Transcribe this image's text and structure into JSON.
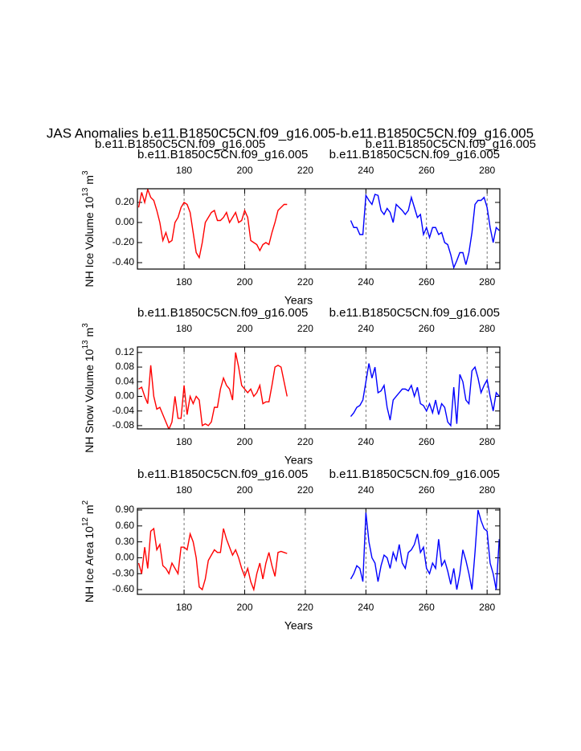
{
  "header": {
    "title": "JAS Anomalies b.e11.B1850C5CN.f09_g16.005-b.e11.B1850C5CN.f09_g16.005",
    "left": "b.e11.B1850C5CN.f09_g16.005",
    "left_color": "#0000ff",
    "right": "b.e11.B1850C5CN.f09_g16.005",
    "right_color": "#ff0000"
  },
  "chart_data": [
    {
      "type": "line",
      "x_label": "Years",
      "y_label": {
        "text": "NH Ice Volume 10",
        "exp": "13",
        "unit": " m",
        "unit_exp": "3"
      },
      "xlim": [
        164.6,
        284.2
      ],
      "xticks": [
        180,
        200,
        220,
        240,
        260,
        280
      ],
      "x_grid": true,
      "ylim": [
        -0.464,
        0.336
      ],
      "yticks": [
        {
          "value": 0.2,
          "label": "0.20"
        },
        {
          "value": 0,
          "label": "0.00"
        },
        {
          "value": -0.2,
          "label": "-0.20"
        },
        {
          "value": -0.4,
          "label": "-0.40"
        }
      ],
      "series": [
        {
          "name": "b.e11.B1850C5CN.f09_g16.005",
          "color": "#ff0000",
          "x": [
            165,
            166,
            167,
            168,
            169,
            170,
            171,
            172,
            173,
            174,
            175,
            176,
            177,
            178,
            179,
            180,
            181,
            182,
            183,
            184,
            185,
            186,
            187,
            188,
            189,
            190,
            191,
            192,
            193,
            194,
            195,
            196,
            197,
            198,
            199,
            200,
            201,
            202,
            203,
            204,
            205,
            206,
            207,
            208,
            209,
            210,
            211,
            212,
            213,
            214
          ],
          "values": [
            0.15,
            0.3,
            0.2,
            0.33,
            0.25,
            0.22,
            0.12,
            0.0,
            -0.18,
            -0.1,
            -0.2,
            -0.18,
            0.0,
            0.05,
            0.15,
            0.2,
            0.18,
            0.1,
            -0.1,
            -0.3,
            -0.35,
            -0.2,
            0.0,
            0.05,
            0.1,
            0.12,
            0.02,
            0.02,
            0.05,
            0.1,
            0.0,
            0.05,
            0.1,
            0.0,
            0.02,
            0.12,
            0.05,
            -0.18,
            -0.2,
            -0.22,
            -0.28,
            -0.22,
            -0.2,
            -0.22,
            -0.1,
            0.0,
            0.12,
            0.15,
            0.18,
            0.18
          ]
        },
        {
          "name": "b.e11.B1850C5CN.f09_g16.005",
          "color": "#0000ff",
          "x": [
            235,
            236,
            237,
            238,
            239,
            240,
            241,
            242,
            243,
            244,
            245,
            246,
            247,
            248,
            249,
            250,
            251,
            252,
            253,
            254,
            255,
            256,
            257,
            258,
            259,
            260,
            261,
            262,
            263,
            264,
            265,
            266,
            267,
            268,
            269,
            270,
            271,
            272,
            273,
            274,
            275,
            276,
            277,
            278,
            279,
            280,
            281,
            282,
            283,
            284
          ],
          "values": [
            0.02,
            -0.05,
            -0.05,
            -0.12,
            -0.12,
            0.27,
            0.22,
            0.18,
            0.28,
            0.27,
            0.12,
            0.08,
            0.14,
            0.1,
            0.0,
            0.18,
            0.15,
            0.12,
            0.08,
            0.12,
            0.25,
            0.15,
            0.05,
            0.08,
            -0.12,
            -0.05,
            -0.15,
            -0.05,
            -0.05,
            -0.12,
            -0.1,
            -0.2,
            -0.22,
            -0.32,
            -0.45,
            -0.38,
            -0.3,
            -0.3,
            -0.42,
            -0.3,
            -0.1,
            0.18,
            0.22,
            0.22,
            0.25,
            0.15,
            -0.05,
            -0.2,
            -0.05,
            -0.08
          ]
        }
      ]
    },
    {
      "type": "line",
      "x_label": "Years",
      "y_label": {
        "text": "NH Snow Volume 10",
        "exp": "13",
        "unit": " m",
        "unit_exp": "3"
      },
      "xlim": [
        164.6,
        284.2
      ],
      "xticks": [
        180,
        200,
        220,
        240,
        260,
        280
      ],
      "x_grid": true,
      "ylim": [
        -0.089,
        0.135
      ],
      "yticks": [
        0.12,
        0.08,
        0.04,
        {
          "value": 0,
          "label": "0.00"
        },
        -0.04,
        -0.08
      ],
      "series": [
        {
          "name": "b.e11.B1850C5CN.f09_g16.005",
          "color": "#ff0000",
          "x": [
            165,
            166,
            167,
            168,
            169,
            170,
            171,
            172,
            173,
            174,
            175,
            176,
            177,
            178,
            179,
            180,
            181,
            182,
            183,
            184,
            185,
            186,
            187,
            188,
            189,
            190,
            191,
            192,
            193,
            194,
            195,
            196,
            197,
            198,
            199,
            200,
            201,
            202,
            203,
            204,
            205,
            206,
            207,
            208,
            209,
            210,
            211,
            212,
            213,
            214
          ],
          "values": [
            0.02,
            0.025,
            0.0,
            -0.02,
            0.085,
            0.0,
            -0.035,
            -0.03,
            -0.05,
            -0.07,
            -0.09,
            -0.07,
            0.0,
            -0.06,
            -0.06,
            0.03,
            -0.05,
            0.0,
            -0.02,
            0.0,
            -0.01,
            -0.08,
            -0.075,
            -0.08,
            -0.07,
            -0.03,
            -0.03,
            0.02,
            0.05,
            0.03,
            0.02,
            -0.01,
            0.12,
            0.08,
            0.03,
            0.02,
            0.01,
            0.02,
            0.0,
            0.01,
            0.03,
            -0.02,
            -0.015,
            -0.015,
            0.03,
            0.08,
            0.085,
            0.08,
            0.04,
            0.0
          ]
        },
        {
          "name": "b.e11.B1850C5CN.f09_g16.005",
          "color": "#0000ff",
          "x": [
            235,
            236,
            237,
            238,
            239,
            240,
            241,
            242,
            243,
            244,
            245,
            246,
            247,
            248,
            249,
            250,
            251,
            252,
            253,
            254,
            255,
            256,
            257,
            258,
            259,
            260,
            261,
            262,
            263,
            264,
            265,
            266,
            267,
            268,
            269,
            270,
            271,
            272,
            273,
            274,
            275,
            276,
            277,
            278,
            279,
            280,
            281,
            282,
            283,
            284
          ],
          "values": [
            -0.055,
            -0.045,
            -0.03,
            -0.025,
            -0.01,
            0.04,
            0.09,
            0.05,
            0.08,
            0.01,
            0.015,
            0.03,
            -0.03,
            -0.065,
            -0.01,
            0.0,
            0.01,
            0.02,
            0.02,
            0.015,
            0.03,
            0.0,
            0.025,
            -0.02,
            -0.025,
            -0.04,
            -0.02,
            -0.045,
            -0.01,
            -0.05,
            -0.02,
            -0.03,
            -0.07,
            -0.08,
            0.025,
            -0.075,
            0.06,
            0.04,
            -0.01,
            -0.02,
            0.07,
            0.08,
            0.05,
            0.01,
            0.03,
            0.045,
            0.0,
            -0.04,
            0.01,
            0.0
          ]
        }
      ]
    },
    {
      "type": "line",
      "x_label": "Years",
      "y_label": {
        "text": "NH Ice Area 10",
        "exp": "12",
        "unit": " m",
        "unit_exp": "2"
      },
      "xlim": [
        164.6,
        284.2
      ],
      "xticks": [
        180,
        200,
        220,
        240,
        260,
        280
      ],
      "x_grid": true,
      "ylim": [
        -0.69,
        0.93
      ],
      "yticks": [
        {
          "value": 0.9,
          "label": "0.90"
        },
        {
          "value": 0.6,
          "label": "0.60"
        },
        {
          "value": 0.3,
          "label": "0.30"
        },
        {
          "value": 0,
          "label": "0.00"
        },
        {
          "value": -0.3,
          "label": "-0.30"
        },
        {
          "value": -0.6,
          "label": "-0.60"
        }
      ],
      "series": [
        {
          "name": "b.e11.B1850C5CN.f09_g16.005",
          "color": "#ff0000",
          "x": [
            165,
            166,
            167,
            168,
            169,
            170,
            171,
            172,
            173,
            174,
            175,
            176,
            177,
            178,
            179,
            180,
            181,
            182,
            183,
            184,
            185,
            186,
            187,
            188,
            189,
            190,
            191,
            192,
            193,
            194,
            195,
            196,
            197,
            198,
            199,
            200,
            201,
            202,
            203,
            204,
            205,
            206,
            207,
            208,
            209,
            210,
            211,
            212,
            213,
            214
          ],
          "values": [
            -0.1,
            -0.3,
            0.2,
            -0.2,
            0.5,
            0.55,
            0.15,
            0.25,
            -0.15,
            -0.2,
            -0.3,
            -0.1,
            -0.2,
            -0.3,
            0.2,
            0.2,
            0.15,
            0.45,
            0.3,
            0.0,
            -0.55,
            -0.6,
            -0.4,
            -0.05,
            0.05,
            0.15,
            0.1,
            0.1,
            0.55,
            0.35,
            0.2,
            0.05,
            0.15,
            0.0,
            -0.2,
            -0.35,
            -0.2,
            -0.45,
            -0.6,
            -0.3,
            -0.1,
            -0.4,
            -0.1,
            0.1,
            -0.15,
            -0.35,
            0.1,
            0.12,
            0.1,
            0.08
          ]
        },
        {
          "name": "b.e11.B1850C5CN.f09_g16.005",
          "color": "#0000ff",
          "x": [
            235,
            236,
            237,
            238,
            239,
            240,
            241,
            242,
            243,
            244,
            245,
            246,
            247,
            248,
            249,
            250,
            251,
            252,
            253,
            254,
            255,
            256,
            257,
            258,
            259,
            260,
            261,
            262,
            263,
            264,
            265,
            266,
            267,
            268,
            269,
            270,
            271,
            272,
            273,
            274,
            275,
            276,
            277,
            278,
            279,
            280,
            281,
            282,
            283,
            284
          ],
          "values": [
            -0.4,
            -0.3,
            -0.15,
            -0.2,
            -0.45,
            0.85,
            0.3,
            0.0,
            -0.1,
            -0.45,
            -0.15,
            0.05,
            0.0,
            -0.2,
            0.1,
            -0.05,
            0.25,
            -0.1,
            -0.2,
            0.1,
            0.15,
            0.25,
            0.45,
            0.1,
            0.2,
            -0.2,
            -0.3,
            -0.1,
            -0.2,
            0.35,
            -0.15,
            -0.05,
            -0.25,
            -0.5,
            -0.2,
            -0.6,
            -0.3,
            0.15,
            -0.05,
            -0.3,
            -0.6,
            0.1,
            0.9,
            0.7,
            0.55,
            0.5,
            -0.1,
            -0.3,
            -0.6,
            0.35
          ]
        }
      ]
    }
  ]
}
